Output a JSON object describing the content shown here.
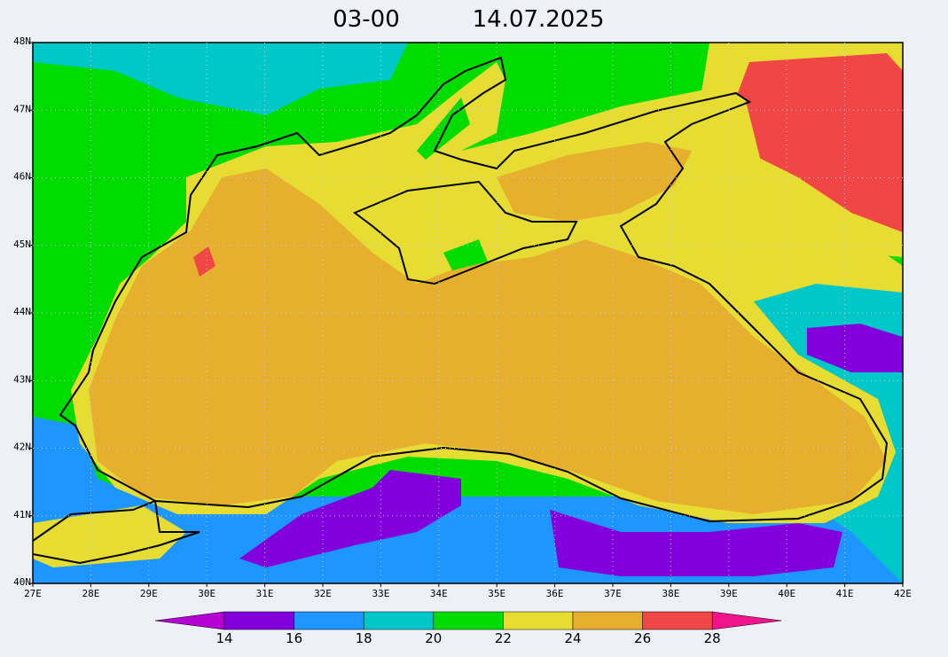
{
  "map": {
    "title_time": "03-00",
    "title_date": "14.07.2025",
    "lon_labels": [
      "27E",
      "28E",
      "29E",
      "30E",
      "31E",
      "32E",
      "33E",
      "34E",
      "35E",
      "36E",
      "37E",
      "38E",
      "39E",
      "40E",
      "41E",
      "42E"
    ],
    "lat_labels": [
      "40N",
      "41N",
      "42N",
      "43N",
      "44N",
      "45N",
      "46N",
      "47N",
      "48N"
    ],
    "colorbar": {
      "levels": [
        14,
        16,
        18,
        20,
        22,
        24,
        26,
        28
      ],
      "colors": [
        "#b400d2",
        "#8200dc",
        "#1e96ff",
        "#00c8c8",
        "#00dc00",
        "#e6dc32",
        "#e6af2d",
        "#f04646",
        "#f0148c"
      ]
    }
  }
}
